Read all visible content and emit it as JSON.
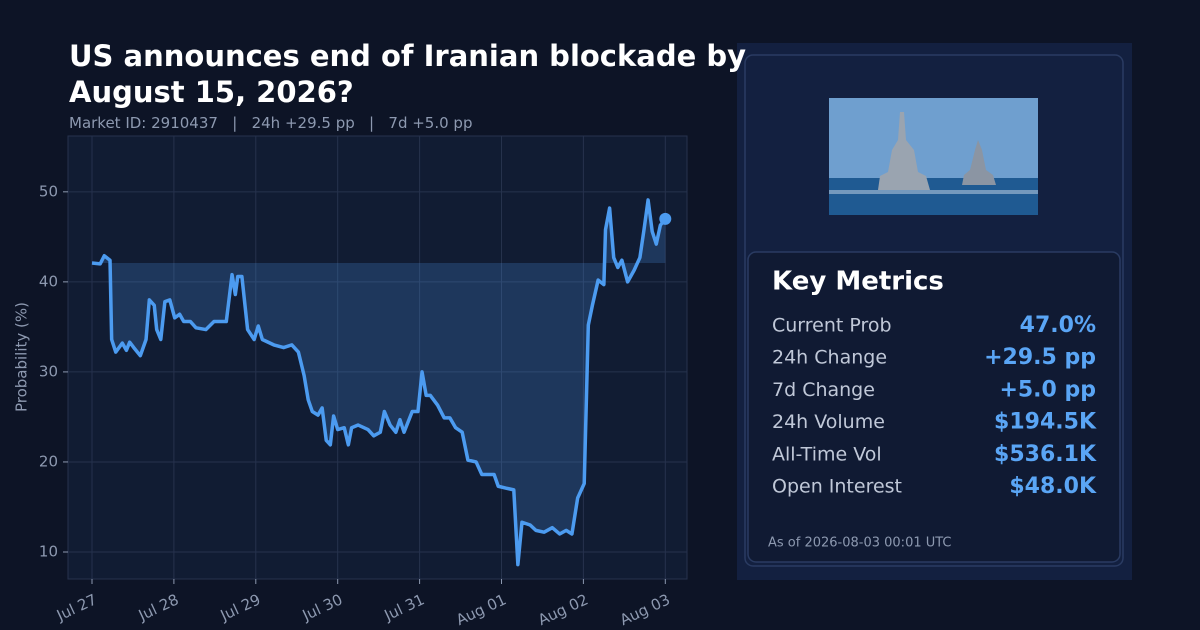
{
  "chart_data": {
    "type": "line",
    "title": "US announces end of Iranian blockade by August 15, 2026?",
    "subtitle": "Market ID: 2910437   |   24h +29.5 pp   |   7d +5.0 pp",
    "y_label": "Probability (%)",
    "x": [
      0,
      0.1,
      0.15,
      0.22,
      0.24,
      0.29,
      0.37,
      0.42,
      0.46,
      0.51,
      0.59,
      0.66,
      0.7,
      0.76,
      0.79,
      0.84,
      0.89,
      0.95,
      1.01,
      1.07,
      1.12,
      1.2,
      1.27,
      1.39,
      1.49,
      1.64,
      1.71,
      1.75,
      1.78,
      1.83,
      1.9,
      1.98,
      2.03,
      2.08,
      2.22,
      2.34,
      2.44,
      2.52,
      2.59,
      2.64,
      2.69,
      2.76,
      2.81,
      2.86,
      2.91,
      2.95,
      3.0,
      3.08,
      3.13,
      3.17,
      3.25,
      3.37,
      3.44,
      3.52,
      3.57,
      3.64,
      3.71,
      3.76,
      3.81,
      3.91,
      3.98,
      4.03,
      4.08,
      4.13,
      4.22,
      4.3,
      4.37,
      4.44,
      4.52,
      4.59,
      4.69,
      4.76,
      4.91,
      4.96,
      5.05,
      5.15,
      5.2,
      5.25,
      5.35,
      5.42,
      5.52,
      5.62,
      5.71,
      5.79,
      5.86,
      5.93,
      6.01,
      6.06,
      6.11,
      6.18,
      6.25,
      6.27,
      6.32,
      6.37,
      6.42,
      6.47,
      6.54,
      6.62,
      6.69,
      6.74,
      6.79,
      6.84,
      6.89,
      6.94,
      7.0
    ],
    "series": [
      {
        "color": "#4c9bf0",
        "values": [
          42.1,
          42.0,
          42.9,
          42.4,
          33.6,
          32.2,
          33.2,
          32.4,
          33.3,
          32.7,
          31.8,
          33.6,
          38.0,
          37.4,
          34.7,
          33.6,
          37.8,
          38.0,
          36.0,
          36.4,
          35.6,
          35.6,
          34.9,
          34.7,
          35.6,
          35.6,
          40.8,
          38.6,
          40.6,
          40.6,
          34.7,
          33.6,
          35.1,
          33.6,
          33.0,
          32.7,
          33.0,
          32.2,
          29.6,
          26.9,
          25.6,
          25.2,
          26.0,
          22.4,
          21.9,
          25.1,
          23.6,
          23.8,
          21.9,
          23.8,
          24.1,
          23.6,
          22.9,
          23.3,
          25.6,
          24.1,
          23.3,
          24.7,
          23.3,
          25.6,
          25.6,
          30.0,
          27.4,
          27.4,
          26.3,
          24.9,
          24.9,
          23.8,
          23.3,
          20.2,
          20.0,
          18.6,
          18.6,
          17.3,
          17.1,
          16.9,
          8.6,
          13.3,
          13.0,
          12.4,
          12.2,
          12.7,
          12.0,
          12.4,
          12.0,
          16.0,
          17.6,
          35.2,
          37.4,
          40.2,
          39.7,
          45.8,
          48.2,
          42.7,
          41.6,
          42.4,
          40.0,
          41.3,
          42.7,
          45.8,
          49.1,
          45.6,
          44.2,
          46.3,
          47.0
        ]
      }
    ],
    "xlim": [
      -0.293,
      7.265
    ],
    "xticks": [
      {
        "value": 0,
        "label": "Jul 27"
      },
      {
        "value": 1,
        "label": "Jul 28"
      },
      {
        "value": 2,
        "label": "Jul 29"
      },
      {
        "value": 3,
        "label": "Jul 30"
      },
      {
        "value": 4,
        "label": "Jul 31"
      },
      {
        "value": 5,
        "label": "Aug 01"
      },
      {
        "value": 6,
        "label": "Aug 02"
      },
      {
        "value": 7,
        "label": "Aug 03"
      }
    ],
    "ylim": [
      7.0,
      56.2
    ],
    "yticks": [
      10,
      20,
      30,
      40,
      50
    ],
    "grid": true
  },
  "panel": {
    "heading": "Key Metrics",
    "metrics": [
      {
        "label": "Current Prob",
        "value": "47.0%"
      },
      {
        "label": "24h Change",
        "value": "+29.5 pp"
      },
      {
        "label": "7d Change",
        "value": "+5.0 pp"
      },
      {
        "label": "24h Volume",
        "value": "$194.5K"
      },
      {
        "label": "All-Time Vol",
        "value": "$536.1K"
      },
      {
        "label": "Open Interest",
        "value": "$48.0K"
      }
    ],
    "footnote": "As of 2026-08-03 00:01 UTC"
  }
}
